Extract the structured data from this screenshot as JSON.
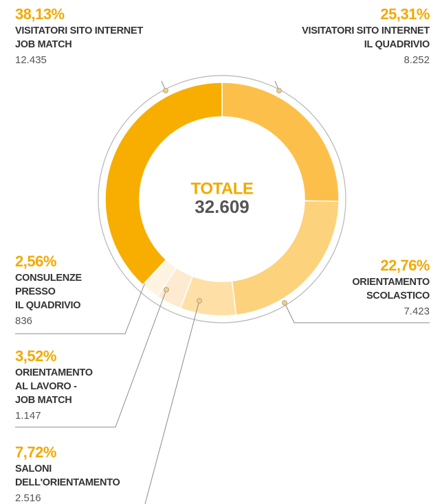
{
  "chart_data": {
    "type": "donut",
    "title": "TOTALE",
    "total": {
      "value": 32609,
      "label": "32.609"
    },
    "categories": [
      [
        "VISITATORI SITO INTERNET",
        "IL QUADRIVIO"
      ],
      [
        "ORIENTAMENTO",
        "SCOLASTICO"
      ],
      [
        "SALONI",
        "DELL'ORIENTAMENTO"
      ],
      [
        "ORIENTAMENTO",
        "AL LAVORO -",
        "JOB MATCH"
      ],
      [
        "CONSULENZE",
        "PRESSO",
        "IL QUADRIVIO"
      ],
      [
        "VISITATORI SITO INTERNET",
        "JOB MATCH"
      ]
    ],
    "values": [
      25.31,
      22.76,
      7.72,
      3.52,
      2.56,
      38.13
    ],
    "value_labels": [
      "25,31%",
      "22,76%",
      "7,72%",
      "3,52%",
      "2,56%",
      "38,13%"
    ],
    "counts": [
      8252,
      7423,
      2516,
      1147,
      836,
      12435
    ],
    "count_labels": [
      "8.252",
      "7.423",
      "2.516",
      "1.147",
      "836",
      "12.435"
    ],
    "colors": [
      "#fcc04a",
      "#fdd27c",
      "#fee0a6",
      "#feead0",
      "#fff3e2",
      "#f7ae00"
    ]
  }
}
